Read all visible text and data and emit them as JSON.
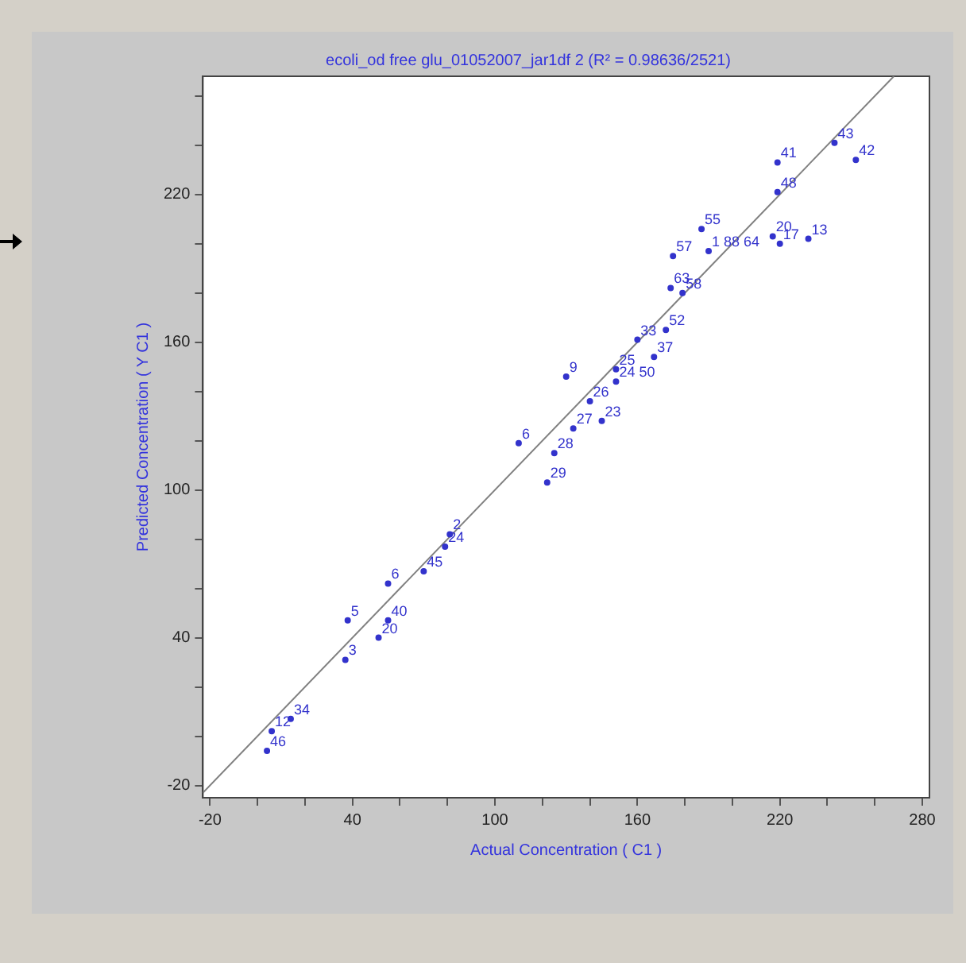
{
  "chart_data": {
    "type": "scatter",
    "title": "ecoli_od free glu_01052007_jar1df 2 (R² = 0.98636/2521)",
    "xlabel": "Actual Concentration ( C1 )",
    "ylabel": "Predicted Concentration ( Y C1 )",
    "xlim": [
      -23,
      283
    ],
    "ylim": [
      -25,
      268
    ],
    "xticks": [
      -20,
      {
        "value": 0,
        "label": null
      },
      {
        "value": 20,
        "label": null
      },
      40,
      {
        "value": 60,
        "label": null
      },
      {
        "value": 80,
        "label": null
      },
      100,
      {
        "value": 120,
        "label": null
      },
      {
        "value": 140,
        "label": null
      },
      160,
      {
        "value": 180,
        "label": null
      },
      {
        "value": 200,
        "label": null
      },
      220,
      {
        "value": 240,
        "label": null
      },
      {
        "value": 260,
        "label": null
      },
      280
    ],
    "yticks": [
      -20,
      {
        "value": 0,
        "label": null
      },
      {
        "value": 20,
        "label": null
      },
      40,
      {
        "value": 60,
        "label": null
      },
      {
        "value": 80,
        "label": null
      },
      100,
      {
        "value": 120,
        "label": null
      },
      {
        "value": 140,
        "label": null
      },
      160,
      {
        "value": 180,
        "label": null
      },
      {
        "value": 200,
        "label": null
      },
      220,
      {
        "value": 240,
        "label": null
      },
      {
        "value": 260,
        "label": null
      }
    ],
    "grid": false,
    "legend": false,
    "series": [
      {
        "marker": "circle",
        "color": "#3333cc",
        "x": [
          243,
          252,
          219,
          219,
          187,
          190,
          175,
          217,
          232,
          220,
          174,
          179,
          172,
          160,
          167,
          130,
          151,
          151,
          140,
          145,
          133,
          110,
          125,
          122,
          81,
          79,
          70,
          55,
          38,
          55,
          51,
          37,
          14,
          6,
          4
        ],
        "values": [
          241,
          234,
          233,
          221,
          206,
          197,
          195,
          203,
          202,
          200,
          182,
          180,
          165,
          161,
          154,
          146,
          149,
          144,
          136,
          128,
          125,
          119,
          115,
          103,
          82,
          77,
          67,
          62,
          47,
          47,
          40,
          31,
          7,
          2,
          -6
        ]
      },
      {
        "type": "line",
        "color": "#808080",
        "x": [
          -23,
          268
        ],
        "values": [
          -23,
          268
        ]
      }
    ],
    "annotations": [
      {
        "text": "43",
        "x": 243,
        "y": 241
      },
      {
        "text": "42",
        "x": 252,
        "y": 234
      },
      {
        "text": "41",
        "x": 219,
        "y": 233
      },
      {
        "text": "48",
        "x": 219,
        "y": 221
      },
      {
        "text": "55",
        "x": 187,
        "y": 206
      },
      {
        "text": "1 88 64",
        "x": 190,
        "y": 197
      },
      {
        "text": "57",
        "x": 175,
        "y": 195
      },
      {
        "text": "20",
        "x": 217,
        "y": 203
      },
      {
        "text": "13",
        "x": 232,
        "y": 202
      },
      {
        "text": "17",
        "x": 220,
        "y": 200
      },
      {
        "text": "63",
        "x": 174,
        "y": 182
      },
      {
        "text": "58",
        "x": 179,
        "y": 180
      },
      {
        "text": "52",
        "x": 172,
        "y": 165
      },
      {
        "text": "33",
        "x": 160,
        "y": 161
      },
      {
        "text": "37",
        "x": 167,
        "y": 154
      },
      {
        "text": "9",
        "x": 130,
        "y": 146
      },
      {
        "text": "25",
        "x": 151,
        "y": 149
      },
      {
        "text": "24 50",
        "x": 151,
        "y": 144
      },
      {
        "text": "26",
        "x": 140,
        "y": 136
      },
      {
        "text": "23",
        "x": 145,
        "y": 128
      },
      {
        "text": "27",
        "x": 133,
        "y": 125
      },
      {
        "text": "6",
        "x": 110,
        "y": 119
      },
      {
        "text": "28",
        "x": 125,
        "y": 115
      },
      {
        "text": "29",
        "x": 122,
        "y": 103
      },
      {
        "text": "2",
        "x": 81,
        "y": 82
      },
      {
        "text": "24",
        "x": 79,
        "y": 77
      },
      {
        "text": "45",
        "x": 70,
        "y": 67
      },
      {
        "text": "6",
        "x": 55,
        "y": 62
      },
      {
        "text": "5",
        "x": 38,
        "y": 47
      },
      {
        "text": "40",
        "x": 55,
        "y": 47
      },
      {
        "text": "20",
        "x": 51,
        "y": 40
      },
      {
        "text": "3",
        "x": 37,
        "y": 31
      },
      {
        "text": "34",
        "x": 14,
        "y": 7
      },
      {
        "text": "12",
        "x": 6,
        "y": 2
      },
      {
        "text": "46",
        "x": 4,
        "y": -6
      }
    ]
  }
}
